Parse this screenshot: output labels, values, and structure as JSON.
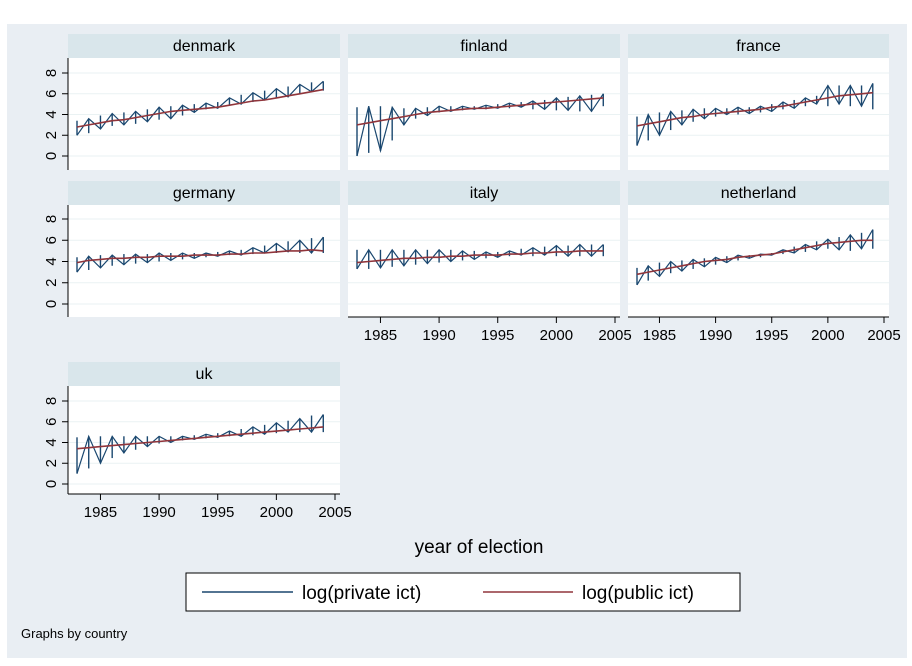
{
  "chart_data": {
    "type": "line",
    "title": "",
    "xlabel": "year of election",
    "note": "Graphs by country",
    "xlim": [
      1983,
      2005
    ],
    "ylim": [
      0,
      8
    ],
    "x_ticks": [
      1985,
      1990,
      1995,
      2000,
      2005
    ],
    "y_ticks": [
      0,
      2,
      4,
      6,
      8
    ],
    "legend": [
      "log(private ict)",
      "log(public ict)"
    ],
    "legend_position": "bottom",
    "colors": {
      "private": "#1a476f",
      "public": "#90353b",
      "strip": "#d9e6eb",
      "plot_bg": "#ffffff",
      "outer_bg": "#e9eef3"
    },
    "x": [
      1983,
      1984,
      1985,
      1986,
      1987,
      1988,
      1989,
      1990,
      1991,
      1992,
      1993,
      1994,
      1995,
      1996,
      1997,
      1998,
      1999,
      2000,
      2001,
      2002,
      2003,
      2004
    ],
    "panels": [
      {
        "name": "denmark",
        "private_low": [
          2.0,
          2.2,
          2.6,
          2.9,
          3.0,
          3.1,
          3.3,
          3.5,
          3.6,
          3.9,
          4.2,
          4.5,
          4.6,
          4.9,
          5.0,
          5.2,
          5.4,
          5.6,
          5.7,
          6.0,
          6.2,
          6.3
        ],
        "private_high": [
          3.4,
          3.6,
          3.9,
          4.1,
          4.2,
          4.3,
          4.5,
          4.7,
          4.8,
          4.9,
          5.0,
          5.1,
          5.2,
          5.6,
          5.9,
          6.1,
          6.3,
          6.5,
          6.7,
          6.9,
          7.1,
          7.2
        ],
        "public": [
          2.8,
          3.0,
          3.2,
          3.4,
          3.5,
          3.7,
          3.9,
          4.1,
          4.3,
          4.4,
          4.5,
          4.6,
          4.7,
          4.9,
          5.1,
          5.3,
          5.4,
          5.6,
          5.8,
          6.0,
          6.2,
          6.4
        ]
      },
      {
        "name": "finland",
        "private_low": [
          0.0,
          0.3,
          0.5,
          1.5,
          3.0,
          3.6,
          3.9,
          4.2,
          4.3,
          4.4,
          4.5,
          4.5,
          4.6,
          4.6,
          4.7,
          4.5,
          4.5,
          4.4,
          4.4,
          4.3,
          4.3,
          4.8
        ],
        "private_high": [
          4.7,
          4.8,
          4.8,
          4.7,
          4.6,
          4.6,
          4.7,
          4.8,
          4.8,
          4.8,
          4.8,
          4.9,
          5.0,
          5.1,
          5.2,
          5.3,
          5.4,
          5.6,
          5.7,
          5.8,
          5.9,
          6.0
        ],
        "public": [
          3.0,
          3.2,
          3.4,
          3.6,
          3.8,
          4.0,
          4.2,
          4.3,
          4.4,
          4.5,
          4.6,
          4.6,
          4.7,
          4.8,
          4.9,
          5.0,
          5.1,
          5.2,
          5.3,
          5.4,
          5.5,
          5.6
        ]
      },
      {
        "name": "france",
        "private_low": [
          1.0,
          1.5,
          2.0,
          2.5,
          3.0,
          3.3,
          3.6,
          3.8,
          4.0,
          4.0,
          4.1,
          4.2,
          4.3,
          4.5,
          4.6,
          4.8,
          5.0,
          4.8,
          5.0,
          4.8,
          4.8,
          4.5
        ],
        "private_high": [
          3.8,
          4.0,
          4.2,
          4.3,
          4.4,
          4.5,
          4.6,
          4.6,
          4.6,
          4.7,
          4.7,
          4.8,
          5.0,
          5.2,
          5.4,
          5.6,
          5.8,
          6.8,
          6.8,
          6.8,
          6.8,
          7.0
        ],
        "public": [
          2.9,
          3.1,
          3.3,
          3.5,
          3.7,
          3.8,
          4.0,
          4.1,
          4.2,
          4.3,
          4.4,
          4.5,
          4.7,
          4.8,
          5.0,
          5.2,
          5.4,
          5.6,
          5.8,
          5.9,
          6.0,
          6.1
        ]
      },
      {
        "name": "germany",
        "private_low": [
          3.0,
          3.2,
          3.4,
          3.6,
          3.7,
          3.8,
          3.9,
          4.0,
          4.1,
          4.2,
          4.3,
          4.4,
          4.5,
          4.6,
          4.6,
          4.7,
          4.8,
          4.8,
          4.9,
          4.8,
          4.8,
          4.8
        ],
        "private_high": [
          4.4,
          4.5,
          4.6,
          4.6,
          4.7,
          4.7,
          4.7,
          4.8,
          4.8,
          4.8,
          4.8,
          4.8,
          4.9,
          5.0,
          5.1,
          5.3,
          5.5,
          5.7,
          5.9,
          6.0,
          6.2,
          6.3
        ],
        "public": [
          3.9,
          4.1,
          4.2,
          4.3,
          4.3,
          4.4,
          4.4,
          4.5,
          4.5,
          4.5,
          4.6,
          4.6,
          4.6,
          4.7,
          4.7,
          4.8,
          4.8,
          4.9,
          5.0,
          5.0,
          5.1,
          5.0
        ]
      },
      {
        "name": "italy",
        "private_low": [
          3.3,
          3.3,
          3.4,
          3.5,
          3.6,
          3.7,
          3.8,
          3.9,
          4.0,
          4.1,
          4.2,
          4.3,
          4.4,
          4.5,
          4.6,
          4.5,
          4.6,
          4.5,
          4.5,
          4.5,
          4.5,
          4.5
        ],
        "private_high": [
          5.1,
          5.1,
          5.1,
          5.1,
          5.1,
          5.1,
          5.1,
          5.1,
          5.1,
          5.0,
          5.0,
          4.9,
          4.9,
          5.0,
          5.2,
          5.3,
          5.4,
          5.5,
          5.5,
          5.6,
          5.6,
          5.6
        ],
        "public": [
          3.9,
          4.0,
          4.1,
          4.2,
          4.3,
          4.3,
          4.4,
          4.4,
          4.5,
          4.5,
          4.6,
          4.6,
          4.6,
          4.7,
          4.7,
          4.8,
          4.8,
          4.9,
          4.9,
          5.0,
          5.0,
          5.0
        ]
      },
      {
        "name": "netherland",
        "private_low": [
          1.8,
          2.2,
          2.6,
          2.9,
          3.1,
          3.3,
          3.5,
          3.7,
          3.9,
          4.1,
          4.3,
          4.4,
          4.6,
          4.7,
          4.8,
          4.9,
          5.1,
          5.2,
          5.1,
          5.0,
          5.2,
          5.2
        ],
        "private_high": [
          3.4,
          3.6,
          3.9,
          4.0,
          4.1,
          4.2,
          4.3,
          4.4,
          4.5,
          4.6,
          4.6,
          4.7,
          4.8,
          5.1,
          5.4,
          5.6,
          5.9,
          6.1,
          6.3,
          6.5,
          6.7,
          7.0
        ],
        "public": [
          2.8,
          3.0,
          3.2,
          3.4,
          3.6,
          3.8,
          4.0,
          4.1,
          4.2,
          4.4,
          4.5,
          4.6,
          4.7,
          4.9,
          5.1,
          5.3,
          5.5,
          5.7,
          5.8,
          5.9,
          6.0,
          6.0
        ]
      },
      {
        "name": "uk",
        "private_low": [
          1.0,
          1.5,
          2.0,
          2.5,
          3.0,
          3.3,
          3.6,
          3.9,
          4.0,
          4.2,
          4.3,
          4.4,
          4.5,
          4.6,
          4.6,
          4.7,
          4.8,
          4.9,
          5.0,
          5.0,
          5.0,
          5.0
        ],
        "private_high": [
          4.5,
          4.6,
          4.6,
          4.6,
          4.6,
          4.6,
          4.6,
          4.6,
          4.6,
          4.6,
          4.7,
          4.8,
          4.9,
          5.1,
          5.3,
          5.5,
          5.7,
          5.9,
          6.1,
          6.3,
          6.6,
          6.7
        ],
        "public": [
          3.4,
          3.5,
          3.6,
          3.7,
          3.8,
          3.9,
          4.0,
          4.1,
          4.2,
          4.3,
          4.4,
          4.5,
          4.6,
          4.7,
          4.8,
          4.9,
          5.0,
          5.1,
          5.2,
          5.3,
          5.4,
          5.5
        ]
      }
    ]
  }
}
